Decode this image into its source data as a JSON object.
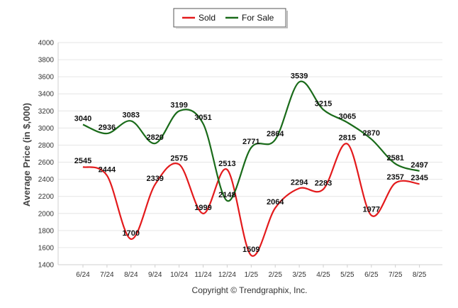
{
  "chart_data": {
    "type": "line",
    "categories": [
      "6/24",
      "7/24",
      "8/24",
      "9/24",
      "10/24",
      "11/24",
      "12/24",
      "1/25",
      "2/25",
      "3/25",
      "4/25",
      "5/25",
      "6/25",
      "7/25",
      "8/25"
    ],
    "series": [
      {
        "name": "Sold",
        "color": "#e31a1c",
        "values": [
          2545,
          2444,
          1700,
          2339,
          2575,
          1999,
          2513,
          1509,
          2064,
          2294,
          2283,
          2815,
          1977,
          2357,
          2345
        ]
      },
      {
        "name": "For Sale",
        "color": "#1a6b1a",
        "values": [
          3040,
          2936,
          3083,
          2820,
          3199,
          3051,
          2148,
          2771,
          2864,
          3539,
          3215,
          3065,
          2870,
          2581,
          2497
        ]
      }
    ],
    "yticks": [
      1400,
      1600,
      1800,
      2000,
      2200,
      2400,
      2600,
      2800,
      3000,
      3200,
      3400,
      3600,
      3800,
      4000
    ],
    "ylim": [
      1400,
      4000
    ],
    "ylabel": "Average Price (in $,000)",
    "xlabel": "",
    "grid": true,
    "legend": "top-center"
  },
  "footer": {
    "credit": "Copyright © Trendgraphix, Inc."
  }
}
